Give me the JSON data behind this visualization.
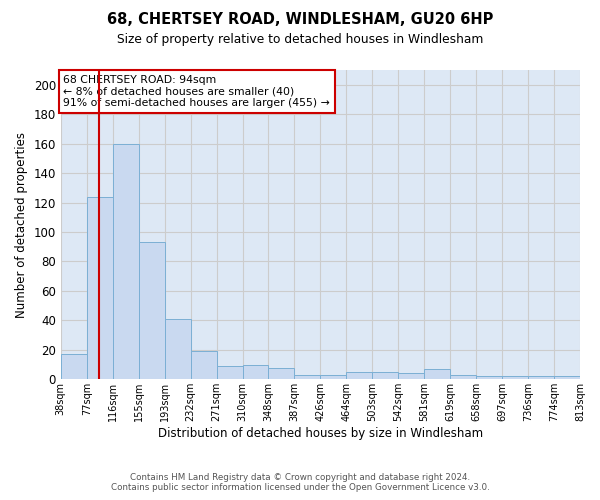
{
  "title": "68, CHERTSEY ROAD, WINDLESHAM, GU20 6HP",
  "subtitle": "Size of property relative to detached houses in Windlesham",
  "xlabel": "Distribution of detached houses by size in Windlesham",
  "ylabel": "Number of detached properties",
  "footer_line1": "Contains HM Land Registry data © Crown copyright and database right 2024.",
  "footer_line2": "Contains public sector information licensed under the Open Government Licence v3.0.",
  "categories": [
    "38sqm",
    "77sqm",
    "116sqm",
    "155sqm",
    "193sqm",
    "232sqm",
    "271sqm",
    "310sqm",
    "348sqm",
    "387sqm",
    "426sqm",
    "464sqm",
    "503sqm",
    "542sqm",
    "581sqm",
    "619sqm",
    "658sqm",
    "697sqm",
    "736sqm",
    "774sqm",
    "813sqm"
  ],
  "values": [
    17,
    124,
    160,
    93,
    41,
    19,
    9,
    10,
    8,
    3,
    3,
    5,
    5,
    4,
    7,
    3,
    2,
    2,
    2,
    2
  ],
  "bar_color": "#c9d9f0",
  "bar_edge_color": "#7bafd4",
  "grid_color": "#cccccc",
  "annotation_text": "68 CHERTSEY ROAD: 94sqm\n← 8% of detached houses are smaller (40)\n91% of semi-detached houses are larger (455) →",
  "annotation_box_color": "#ffffff",
  "annotation_box_edge": "#cc0000",
  "vline_x": 1.47,
  "vline_color": "#cc0000",
  "ylim": [
    0,
    210
  ],
  "yticks": [
    0,
    20,
    40,
    60,
    80,
    100,
    120,
    140,
    160,
    180,
    200
  ],
  "bg_color": "#dde8f5"
}
